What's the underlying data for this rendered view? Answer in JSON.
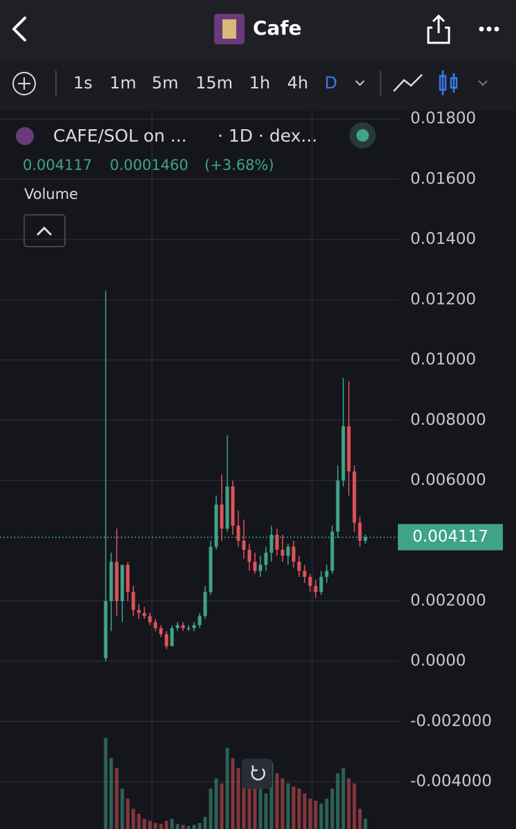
{
  "header": {
    "title": "Cafe"
  },
  "toolbar": {
    "intervals": [
      "1s",
      "1m",
      "5m",
      "15m",
      "1h",
      "4h",
      "D"
    ],
    "active": 6
  },
  "legend": {
    "pair": "CAFE/SOL on ...",
    "interval": "· 1D · dex...",
    "change": "0.0001460",
    "change_pct": "(+3.68%)",
    "volume": "Volume"
  },
  "chart_data": {
    "type": "candlestick",
    "up_color": "#3fa38a",
    "down_color": "#e0525a",
    "ylim": [
      -0.00557,
      0.01828
    ],
    "yticks": [
      {
        "value": 0.018,
        "label": "0.01800"
      },
      {
        "value": 0.016,
        "label": "0.01600"
      },
      {
        "value": 0.014,
        "label": "0.01400"
      },
      {
        "value": 0.012,
        "label": "0.01200"
      },
      {
        "value": 0.01,
        "label": "0.01000"
      },
      {
        "value": 0.008,
        "label": "0.008000"
      },
      {
        "value": 0.006,
        "label": "0.006000"
      },
      {
        "value": 0.002,
        "label": "0.002000"
      },
      {
        "value": 0,
        "label": "0.0000"
      },
      {
        "value": -0.002,
        "label": "-0.002000"
      },
      {
        "value": -0.004,
        "label": "-0.004000"
      }
    ],
    "grid": true,
    "open": [
      0.0001,
      0.002,
      0.0033,
      0.002,
      0.0032,
      0.0023,
      0.0017,
      0.0016,
      0.0015,
      0.0013,
      0.0011,
      0.0009,
      0.0005,
      0.0011,
      0.0012,
      0.0011,
      0.0011,
      0.0012,
      0.0015,
      0.0023,
      0.0038,
      0.0052,
      0.0044,
      0.0058,
      0.0045,
      0.004,
      0.0037,
      0.0033,
      0.003,
      0.0032,
      0.0036,
      0.0042,
      0.0037,
      0.0035,
      0.0038,
      0.0033,
      0.003,
      0.0028,
      0.0025,
      0.0023,
      0.0028,
      0.003,
      0.0043,
      0.006,
      0.0078,
      0.0063,
      0.0046,
      0.004
    ],
    "high": [
      0.0123,
      0.0036,
      0.0044,
      0.0032,
      0.0033,
      0.0025,
      0.0019,
      0.0018,
      0.0016,
      0.0014,
      0.0012,
      0.001,
      0.0012,
      0.0013,
      0.0013,
      0.0012,
      0.0013,
      0.0016,
      0.0025,
      0.004,
      0.0055,
      0.0062,
      0.0075,
      0.006,
      0.005,
      0.0047,
      0.0039,
      0.0036,
      0.0035,
      0.0038,
      0.0045,
      0.0044,
      0.0042,
      0.0039,
      0.004,
      0.0035,
      0.0032,
      0.0029,
      0.0027,
      0.003,
      0.0032,
      0.0045,
      0.0065,
      0.0094,
      0.0093,
      0.0065,
      0.0048,
      0.0042
    ],
    "low": [
      0,
      0.001,
      0.0015,
      0.0013,
      0.002,
      0.0015,
      0.0014,
      0.0014,
      0.0012,
      0.001,
      0.0008,
      0.0004,
      0.0005,
      0.001,
      0.001,
      0.001,
      0.001,
      0.0011,
      0.0014,
      0.0022,
      0.0037,
      0.004,
      0.0043,
      0.0042,
      0.0038,
      0.0034,
      0.003,
      0.0029,
      0.0028,
      0.003,
      0.0033,
      0.0035,
      0.0033,
      0.0032,
      0.0031,
      0.0028,
      0.0026,
      0.0023,
      0.0021,
      0.0022,
      0.0026,
      0.0029,
      0.0041,
      0.0058,
      0.0055,
      0.0043,
      0.0038,
      0.0039
    ],
    "close": [
      0.002,
      0.0033,
      0.002,
      0.0032,
      0.0023,
      0.0017,
      0.0016,
      0.0015,
      0.0013,
      0.0011,
      0.0009,
      0.0005,
      0.0011,
      0.0012,
      0.0011,
      0.0011,
      0.0012,
      0.0015,
      0.0023,
      0.0038,
      0.0052,
      0.0044,
      0.0058,
      0.0045,
      0.004,
      0.0037,
      0.0033,
      0.003,
      0.0032,
      0.0036,
      0.0042,
      0.0037,
      0.0035,
      0.0038,
      0.0033,
      0.003,
      0.0028,
      0.0025,
      0.0023,
      0.0028,
      0.003,
      0.0043,
      0.006,
      0.0078,
      0.0063,
      0.0046,
      0.004,
      0.004117
    ],
    "volume": [
      90,
      70,
      60,
      40,
      30,
      20,
      15,
      10,
      8,
      6,
      5,
      8,
      10,
      5,
      4,
      3,
      4,
      6,
      12,
      40,
      50,
      45,
      80,
      70,
      60,
      55,
      50,
      45,
      40,
      35,
      65,
      55,
      50,
      45,
      42,
      40,
      35,
      30,
      28,
      25,
      30,
      40,
      55,
      60,
      50,
      45,
      20,
      10
    ]
  }
}
